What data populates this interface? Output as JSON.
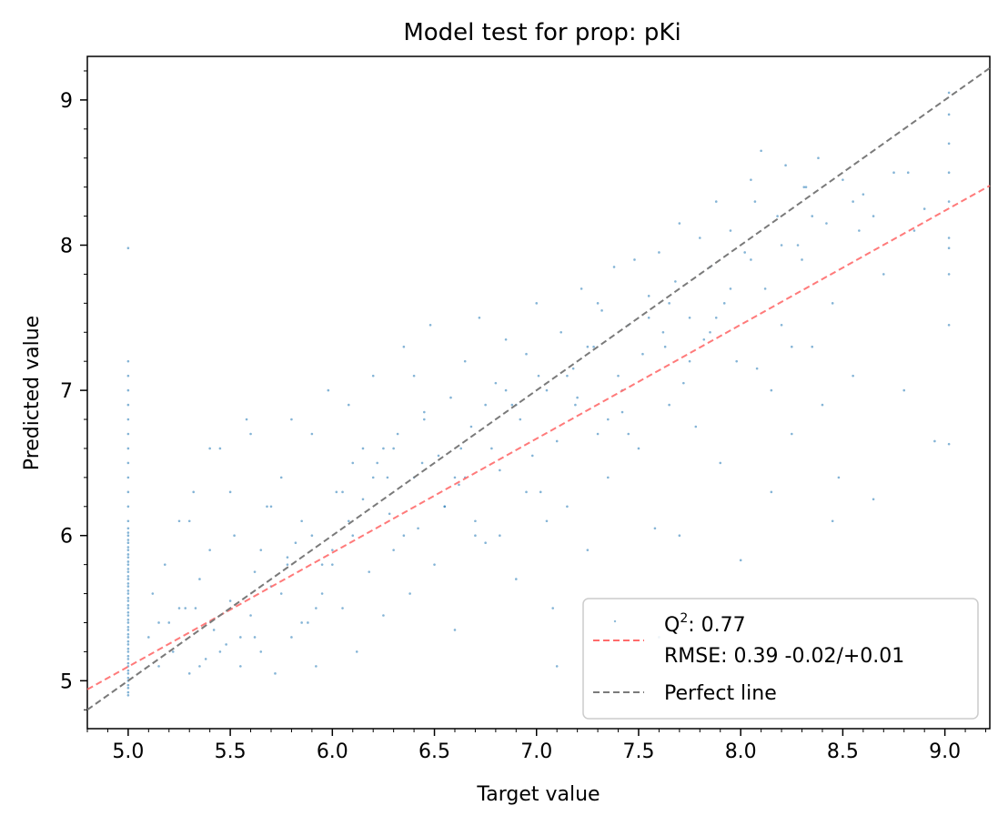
{
  "chart_data": {
    "type": "scatter",
    "title": "Model test for prop: pKi",
    "xlabel": "Target value",
    "ylabel": "Predicted value",
    "xlim": [
      4.8,
      9.22
    ],
    "ylim": [
      4.67,
      9.3
    ],
    "xticks": [
      5.0,
      5.5,
      6.0,
      6.5,
      7.0,
      7.5,
      8.0,
      8.5,
      9.0
    ],
    "xtick_labels": [
      "5.0",
      "5.5",
      "6.0",
      "6.5",
      "7.0",
      "7.5",
      "8.0",
      "8.5",
      "9.0"
    ],
    "yticks": [
      5,
      6,
      7,
      8,
      9
    ],
    "ytick_labels": [
      "5",
      "6",
      "7",
      "8",
      "9"
    ],
    "grid": false,
    "legend_position": "lower-right",
    "legend": {
      "q2_prefix": "Q",
      "q2_sup": "2",
      "q2_value": ": 0.77",
      "rmse": "RMSE: 0.39 -0.02/+0.01",
      "perfect": "Perfect line"
    },
    "colors": {
      "points": "#1f77b4",
      "fit_line": "#ff6b6b",
      "perfect_line": "#7a7a7a"
    },
    "series": [
      {
        "type": "scatter",
        "x": [
          5.0,
          5.0,
          5.0,
          5.0,
          5.0,
          5.0,
          5.0,
          5.0,
          5.0,
          5.0,
          5.0,
          5.0,
          5.0,
          5.0,
          5.0,
          5.0,
          5.0,
          5.0,
          5.0,
          5.0,
          5.0,
          5.0,
          5.0,
          5.0,
          5.0,
          5.0,
          5.0,
          5.0,
          5.0,
          5.0,
          5.0,
          5.0,
          5.0,
          5.0,
          5.0,
          5.0,
          5.0,
          5.0,
          5.0,
          5.0,
          5.0,
          5.0,
          5.0,
          5.0,
          5.0,
          5.0,
          5.0,
          5.0,
          5.0,
          5.0,
          5.0,
          5.0,
          5.0,
          5.0,
          5.0,
          5.0,
          5.0,
          5.0,
          5.0,
          5.0,
          5.1,
          5.12,
          5.15,
          5.18,
          5.2,
          5.22,
          5.25,
          5.28,
          5.3,
          5.32,
          5.35,
          5.38,
          5.4,
          5.42,
          5.45,
          5.48,
          5.5,
          5.52,
          5.55,
          5.58,
          5.6,
          5.62,
          5.65,
          5.68,
          5.7,
          5.72,
          5.75,
          5.78,
          5.8,
          5.82,
          5.85,
          5.88,
          5.9,
          5.92,
          5.95,
          5.98,
          6.0,
          6.02,
          6.05,
          6.08,
          6.1,
          6.12,
          6.15,
          6.18,
          6.2,
          6.22,
          6.25,
          6.28,
          6.3,
          6.32,
          6.35,
          6.38,
          6.4,
          6.42,
          6.45,
          6.48,
          6.5,
          6.52,
          6.55,
          6.58,
          6.6,
          6.62,
          6.65,
          6.68,
          6.7,
          6.72,
          6.75,
          6.78,
          6.8,
          6.82,
          6.85,
          6.88,
          6.9,
          6.92,
          6.95,
          6.98,
          7.0,
          7.02,
          7.05,
          7.08,
          7.1,
          7.12,
          7.15,
          7.18,
          7.2,
          7.22,
          7.25,
          7.28,
          7.3,
          7.32,
          7.35,
          7.38,
          7.4,
          7.42,
          7.45,
          7.48,
          7.5,
          7.52,
          7.55,
          7.58,
          7.6,
          7.62,
          7.65,
          7.68,
          7.7,
          7.72,
          7.75,
          7.78,
          7.8,
          7.82,
          7.85,
          7.88,
          7.9,
          7.92,
          7.95,
          7.98,
          8.0,
          8.02,
          8.05,
          8.08,
          8.1,
          8.12,
          8.15,
          8.18,
          8.2,
          8.22,
          8.25,
          8.28,
          8.3,
          8.32,
          8.35,
          8.38,
          8.4,
          8.42,
          8.45,
          8.48,
          8.5,
          8.55,
          8.6,
          8.65,
          8.7,
          8.75,
          8.8,
          8.85,
          8.9,
          8.95,
          9.02,
          9.02,
          9.02,
          9.02,
          9.02,
          9.02,
          9.02,
          9.02,
          9.02,
          9.02,
          5.4,
          5.6,
          5.8,
          6.2,
          6.4,
          6.7,
          7.1,
          7.6,
          6.0,
          5.3,
          5.5,
          5.7,
          5.9,
          6.1,
          6.3,
          6.6,
          6.9,
          7.3,
          7.7,
          8.2,
          5.25,
          5.45,
          5.65,
          5.85,
          6.05,
          6.25,
          6.45,
          6.65,
          6.85,
          7.05,
          7.25,
          7.45,
          7.65,
          7.85,
          8.05,
          8.25,
          8.45,
          8.65,
          5.35,
          5.55,
          5.75,
          5.95,
          6.15,
          6.35,
          6.55,
          6.75,
          6.95,
          7.15,
          7.35,
          7.55,
          7.75,
          7.95,
          8.15,
          8.35,
          8.55,
          5.15,
          5.33,
          5.62,
          5.78,
          5.92,
          6.08,
          6.27,
          6.44,
          6.63,
          6.82,
          7.01,
          7.19,
          7.42,
          7.63,
          7.88,
          8.07,
          8.31,
          8.58,
          8.82
        ],
        "y": [
          4.9,
          4.95,
          5.0,
          5.05,
          5.1,
          5.15,
          5.2,
          5.25,
          5.3,
          5.35,
          5.4,
          5.45,
          5.5,
          5.55,
          5.6,
          5.65,
          5.7,
          5.75,
          5.8,
          5.85,
          5.9,
          5.95,
          6.0,
          6.05,
          6.1,
          6.2,
          6.3,
          6.4,
          6.5,
          6.6,
          6.7,
          6.8,
          6.9,
          7.0,
          7.1,
          7.2,
          7.98,
          4.92,
          4.97,
          5.02,
          5.07,
          5.12,
          5.17,
          5.22,
          5.27,
          5.32,
          5.37,
          5.42,
          5.47,
          5.52,
          5.57,
          5.62,
          5.67,
          5.72,
          5.77,
          5.82,
          5.87,
          5.92,
          5.97,
          6.02,
          5.3,
          5.6,
          5.1,
          5.8,
          5.4,
          5.2,
          6.1,
          5.5,
          5.05,
          6.3,
          5.7,
          5.15,
          5.9,
          5.35,
          6.6,
          5.25,
          5.55,
          6.0,
          5.1,
          6.8,
          5.45,
          5.75,
          5.2,
          6.2,
          5.65,
          5.05,
          6.4,
          5.85,
          5.3,
          5.95,
          6.1,
          5.4,
          6.7,
          5.1,
          5.6,
          7.0,
          5.8,
          6.3,
          5.5,
          6.9,
          6.0,
          5.2,
          6.25,
          5.75,
          7.1,
          6.5,
          5.45,
          6.15,
          5.9,
          6.7,
          7.3,
          5.6,
          6.4,
          6.05,
          6.85,
          7.45,
          5.8,
          6.55,
          6.2,
          6.95,
          5.35,
          6.35,
          7.2,
          6.75,
          6.1,
          7.5,
          5.95,
          6.6,
          7.05,
          6.45,
          7.35,
          6.9,
          5.7,
          6.8,
          7.25,
          6.55,
          7.6,
          6.3,
          7.0,
          5.5,
          6.65,
          7.4,
          6.2,
          7.15,
          6.95,
          7.7,
          5.9,
          7.3,
          6.7,
          7.55,
          6.4,
          7.85,
          7.1,
          6.85,
          7.45,
          7.9,
          6.6,
          7.25,
          7.65,
          6.05,
          7.95,
          7.4,
          6.9,
          7.75,
          8.15,
          7.05,
          7.5,
          6.75,
          8.05,
          7.35,
          7.85,
          8.3,
          6.5,
          7.6,
          8.1,
          7.2,
          5.83,
          7.95,
          8.45,
          7.15,
          8.65,
          7.7,
          6.3,
          8.2,
          7.45,
          8.55,
          6.7,
          8.0,
          7.9,
          8.4,
          7.3,
          8.6,
          6.9,
          8.15,
          7.6,
          6.4,
          8.45,
          7.1,
          8.35,
          6.25,
          7.8,
          8.5,
          7.0,
          8.1,
          8.25,
          6.65,
          7.45,
          7.8,
          8.05,
          8.3,
          8.5,
          8.7,
          8.9,
          9.05,
          6.63,
          7.98,
          6.6,
          6.7,
          6.8,
          6.4,
          7.1,
          6.0,
          5.1,
          5.3,
          5.9,
          6.1,
          6.3,
          6.2,
          6.0,
          6.5,
          6.6,
          6.4,
          6.9,
          7.6,
          6.0,
          8.0,
          5.5,
          5.2,
          5.9,
          5.4,
          6.3,
          6.6,
          6.8,
          6.4,
          7.0,
          6.1,
          7.3,
          6.7,
          7.6,
          7.4,
          7.9,
          7.3,
          6.1,
          8.2,
          5.1,
          5.3,
          5.6,
          5.8,
          6.6,
          6.0,
          6.2,
          6.9,
          6.3,
          7.1,
          6.8,
          7.5,
          7.2,
          7.7,
          7.0,
          8.2,
          8.3,
          5.4,
          5.5,
          5.3,
          5.8,
          5.5,
          6.1,
          6.4,
          6.5,
          6.6,
          6.0,
          7.1,
          6.9,
          7.0,
          7.3,
          7.5,
          8.3,
          8.4,
          8.1,
          8.5
        ]
      },
      {
        "type": "line",
        "x": [
          4.8,
          9.22
        ],
        "y": [
          4.94,
          8.41
        ]
      },
      {
        "type": "line",
        "x": [
          4.8,
          9.22
        ],
        "y": [
          4.8,
          9.22
        ]
      }
    ]
  }
}
